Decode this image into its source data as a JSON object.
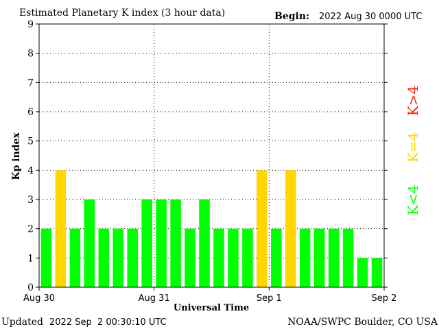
{
  "header": {
    "title": "Estimated Planetary K index (3 hour data)",
    "begin_label": "Begin:",
    "begin_value": "2022 Aug 30 0000 UTC"
  },
  "footer": {
    "updated_label": "Updated",
    "updated_value": "2022 Sep  2 00:30:10 UTC",
    "source": "NOAA/SWPC Boulder, CO USA"
  },
  "legend": {
    "below": "K<4",
    "equal": "K=4",
    "above": "K>4"
  },
  "colors": {
    "below": "#00ff00",
    "equal": "#ffd700",
    "above": "#ff2000",
    "grid": "#000000"
  },
  "chart_data": {
    "type": "bar",
    "title": "Estimated Planetary K index (3 hour data)",
    "xlabel": "Universal Time",
    "ylabel": "Kp index",
    "ylim": [
      0,
      9
    ],
    "yticks": [
      0,
      1,
      2,
      3,
      4,
      5,
      6,
      7,
      8,
      9
    ],
    "x_tick_labels": [
      "Aug 30",
      "Aug 31",
      "Sep 1",
      "Sep 2"
    ],
    "values": [
      2,
      4,
      2,
      3,
      2,
      2,
      2,
      3,
      3,
      3,
      2,
      3,
      2,
      2,
      2,
      4,
      2,
      4,
      2,
      2,
      2,
      2,
      1,
      1
    ],
    "grid": true
  }
}
